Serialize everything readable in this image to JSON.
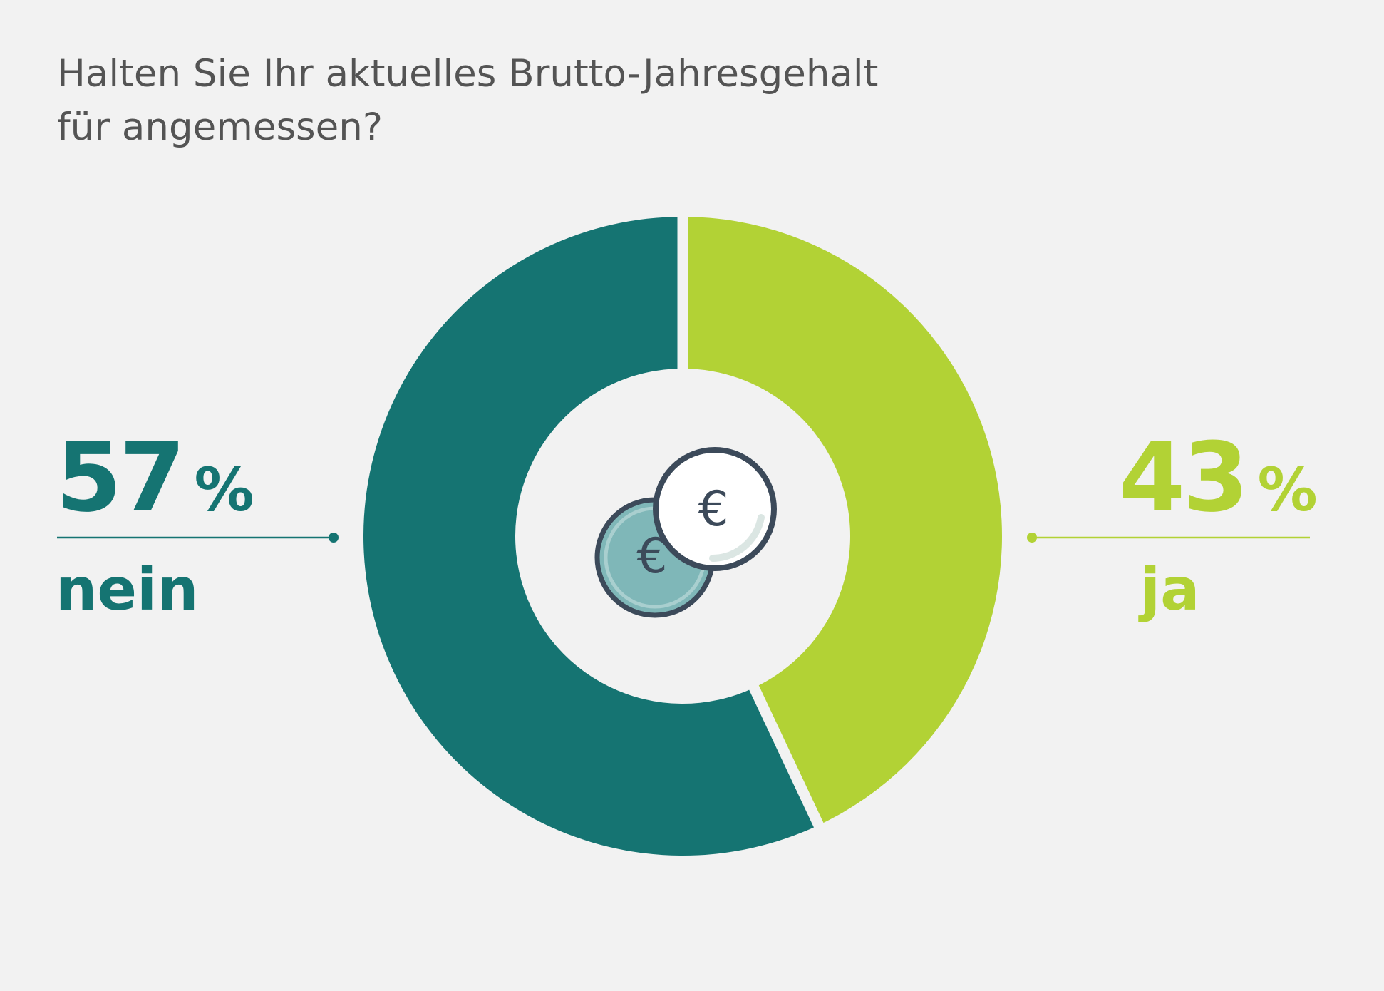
{
  "title_lines": [
    "Halten Sie Ihr aktuelles Brutto-Jahresgehalt",
    "für angemessen?"
  ],
  "chart_data": {
    "type": "pie",
    "variant": "donut",
    "title": "Halten Sie Ihr aktuelles Brutto-Jahresgehalt für angemessen?",
    "unit": "%",
    "start": "12 o'clock",
    "direction": "clockwise",
    "series": [
      {
        "label": "ja",
        "value": 43,
        "value_label": "43",
        "color": "#b2d235"
      },
      {
        "label": "nein",
        "value": 57,
        "value_label": "57",
        "color": "#157472"
      }
    ],
    "center_icon": "euro-coins-icon"
  },
  "annotations": {
    "nein": {
      "value": "57",
      "unit": "%",
      "label": "nein",
      "side": "left",
      "color": "#157472"
    },
    "ja": {
      "value": "43",
      "unit": "%",
      "label": "ja",
      "side": "right",
      "color": "#b2d235"
    }
  }
}
